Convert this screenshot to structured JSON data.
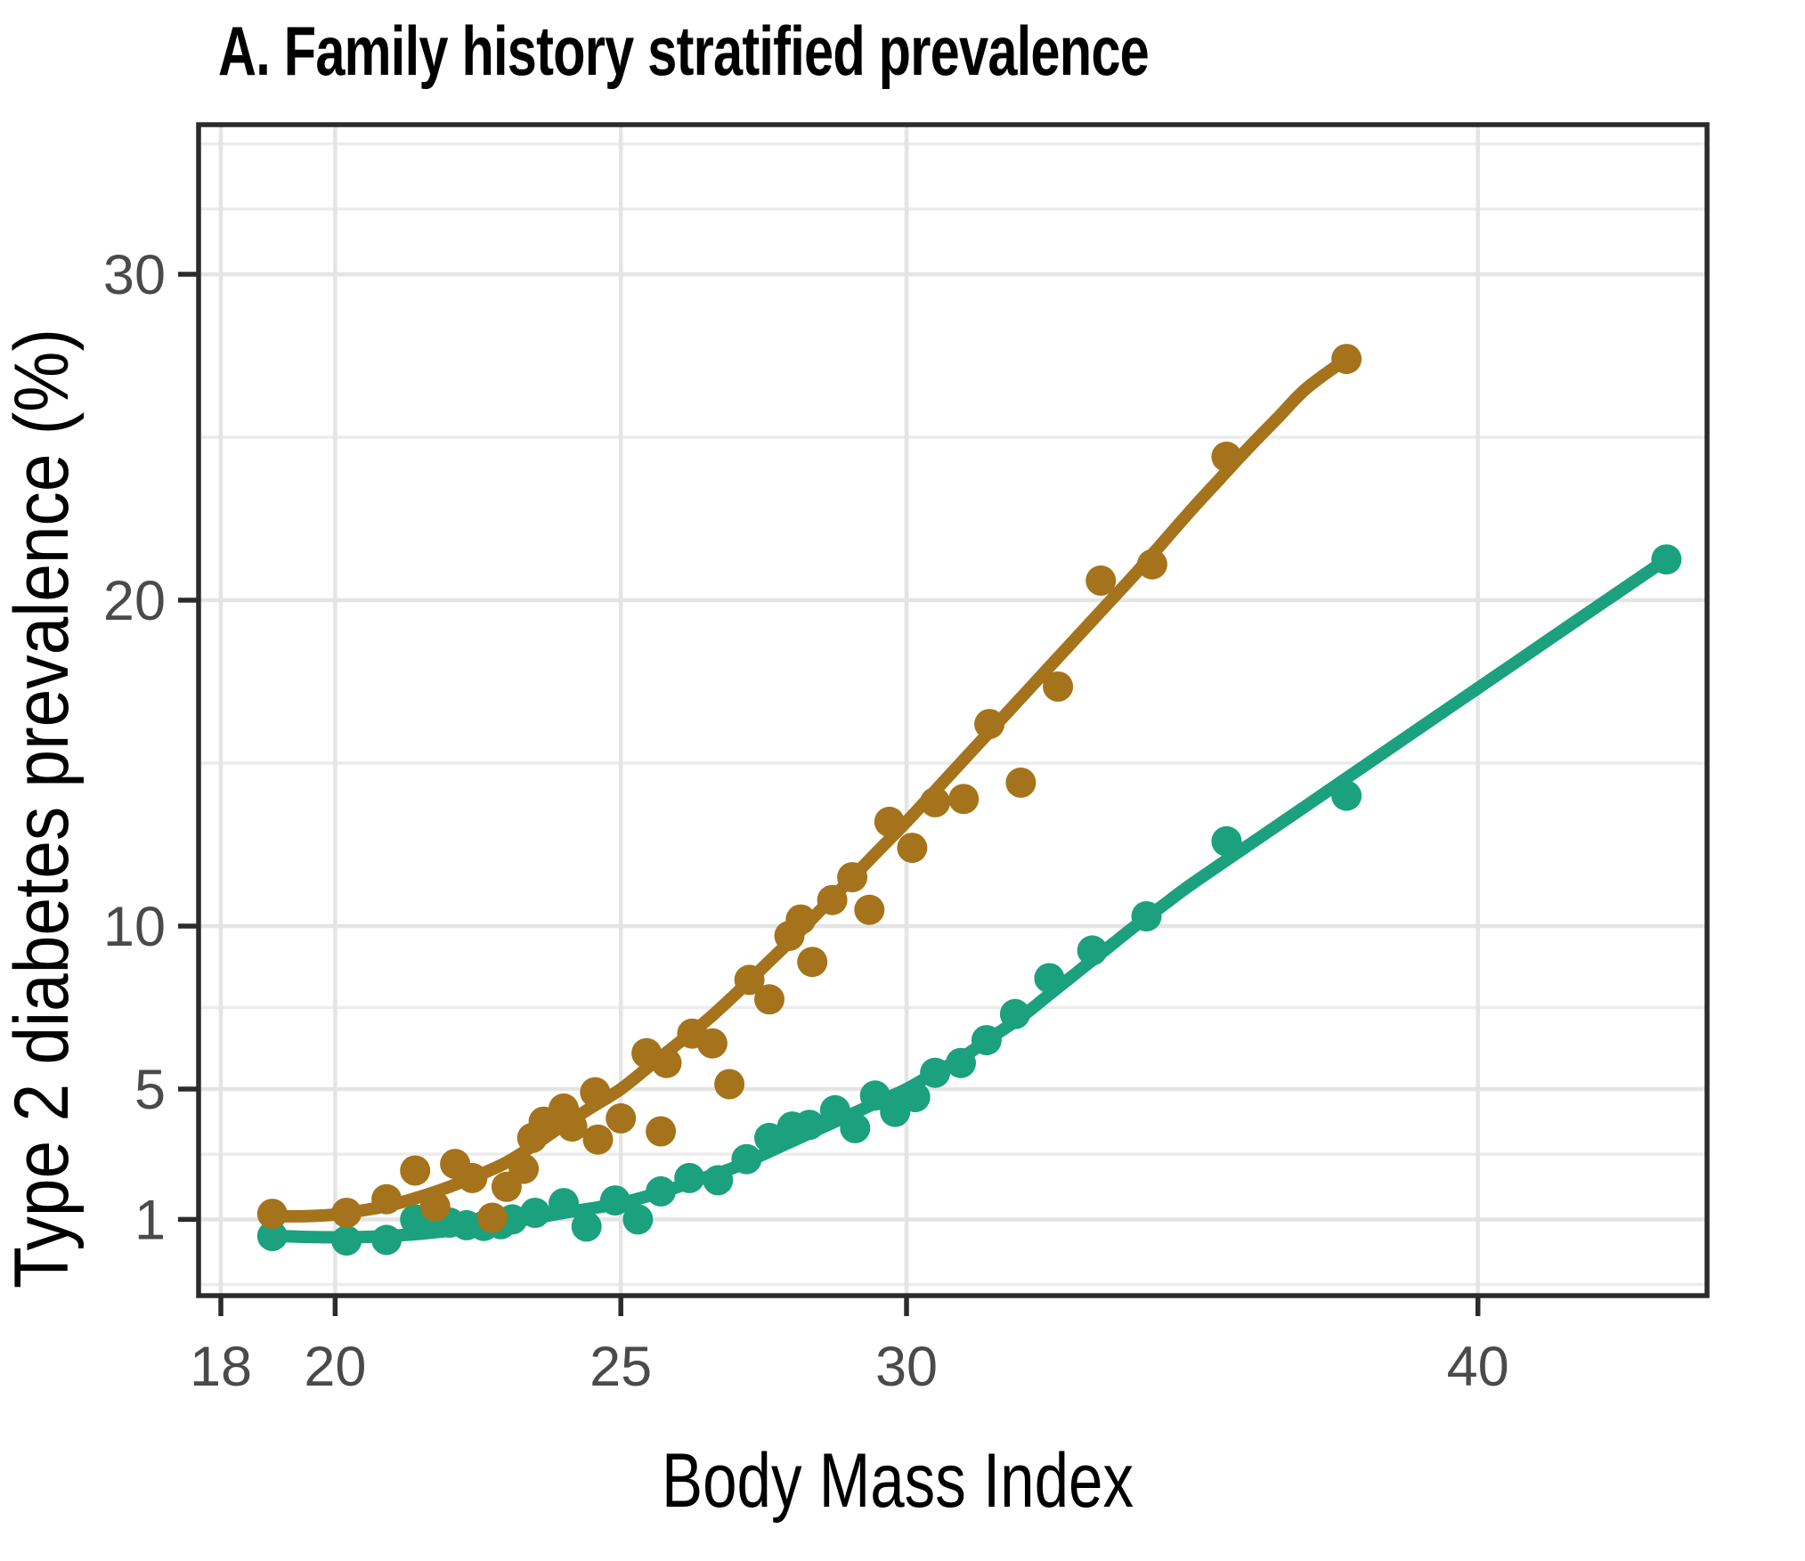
{
  "title": "A. Family history stratified prevalence",
  "chart_data": {
    "type": "scatter",
    "title": "A. Family history stratified prevalence",
    "xlabel": "Body Mass Index",
    "ylabel": "Type 2 diabetes prevalence (%)",
    "grid": true,
    "legend": "none",
    "x_scale": "linear",
    "y_scale": "linear",
    "xlim": [
      17.61,
      44.01
    ],
    "ylim": [
      -1.34,
      34.59
    ],
    "x_major_ticks": [
      18,
      20,
      25,
      30,
      40
    ],
    "y_major_ticks": [
      30,
      20,
      10,
      5,
      1
    ],
    "y_minor_gridlines": [
      -1,
      3,
      7.5,
      15,
      25,
      32,
      34
    ],
    "colors": {
      "brown_series": "#A5731C",
      "green_series": "#1BA17D",
      "major_grid": "#e4e4e4",
      "minor_grid": "#ececec",
      "panel_border": "#2b2b2b",
      "tick_label": "#4a4a4a",
      "text": "#000000"
    },
    "series": [
      {
        "name": "brown-series",
        "color": "#A5731C",
        "points": [
          [
            18.9,
            1.17
          ],
          [
            20.2,
            1.2
          ],
          [
            20.9,
            1.62
          ],
          [
            21.4,
            2.5
          ],
          [
            21.75,
            1.4
          ],
          [
            22.1,
            2.7
          ],
          [
            22.4,
            2.27
          ],
          [
            22.75,
            1.05
          ],
          [
            23.0,
            2.0
          ],
          [
            23.3,
            2.55
          ],
          [
            23.45,
            3.5
          ],
          [
            23.65,
            4.0
          ],
          [
            24.0,
            4.4
          ],
          [
            24.15,
            3.85
          ],
          [
            24.55,
            4.9
          ],
          [
            24.6,
            3.45
          ],
          [
            25.0,
            4.1
          ],
          [
            25.45,
            6.1
          ],
          [
            25.7,
            3.7
          ],
          [
            25.8,
            5.8
          ],
          [
            26.25,
            6.7
          ],
          [
            26.6,
            6.4
          ],
          [
            26.9,
            5.15
          ],
          [
            27.25,
            8.35
          ],
          [
            27.6,
            7.75
          ],
          [
            27.95,
            9.7
          ],
          [
            28.15,
            10.2
          ],
          [
            28.35,
            8.9
          ],
          [
            28.7,
            10.8
          ],
          [
            29.05,
            11.5
          ],
          [
            29.35,
            10.5
          ],
          [
            29.7,
            13.2
          ],
          [
            30.1,
            12.4
          ],
          [
            30.5,
            13.8
          ],
          [
            31.0,
            13.9
          ],
          [
            31.45,
            16.2
          ],
          [
            32.0,
            14.4
          ],
          [
            32.65,
            17.35
          ],
          [
            33.4,
            20.6
          ],
          [
            34.3,
            21.1
          ],
          [
            35.6,
            24.4
          ],
          [
            37.7,
            27.4
          ]
        ],
        "trend": [
          [
            18.85,
            1.1
          ],
          [
            19.5,
            1.1
          ],
          [
            20,
            1.15
          ],
          [
            20.5,
            1.28
          ],
          [
            21,
            1.45
          ],
          [
            21.5,
            1.7
          ],
          [
            22,
            2.0
          ],
          [
            22.5,
            2.35
          ],
          [
            23,
            2.75
          ],
          [
            23.5,
            3.3
          ],
          [
            24,
            3.9
          ],
          [
            24.5,
            4.45
          ],
          [
            25,
            5.0
          ],
          [
            25.5,
            5.7
          ],
          [
            26,
            6.4
          ],
          [
            26.5,
            7.1
          ],
          [
            27,
            7.9
          ],
          [
            27.5,
            8.75
          ],
          [
            28,
            9.6
          ],
          [
            28.5,
            10.5
          ],
          [
            29,
            11.4
          ],
          [
            29.5,
            12.3
          ],
          [
            30,
            13.2
          ],
          [
            30.5,
            14.15
          ],
          [
            31,
            15.1
          ],
          [
            31.5,
            16.05
          ],
          [
            32,
            17.0
          ],
          [
            32.5,
            17.95
          ],
          [
            33,
            18.9
          ],
          [
            33.5,
            19.85
          ],
          [
            34,
            20.8
          ],
          [
            34.5,
            21.8
          ],
          [
            35,
            22.8
          ],
          [
            35.5,
            23.75
          ],
          [
            36,
            24.7
          ],
          [
            36.5,
            25.6
          ],
          [
            37,
            26.5
          ],
          [
            37.7,
            27.4
          ]
        ]
      },
      {
        "name": "green-series",
        "color": "#1BA17D",
        "points": [
          [
            18.9,
            0.49
          ],
          [
            20.2,
            0.35
          ],
          [
            20.9,
            0.37
          ],
          [
            21.4,
            1.0
          ],
          [
            21.7,
            0.9
          ],
          [
            22.0,
            0.9
          ],
          [
            22.3,
            0.82
          ],
          [
            22.6,
            0.8
          ],
          [
            22.9,
            0.85
          ],
          [
            23.1,
            1.0
          ],
          [
            23.5,
            1.2
          ],
          [
            24.0,
            1.5
          ],
          [
            24.4,
            0.78
          ],
          [
            24.9,
            1.58
          ],
          [
            25.3,
            1.0
          ],
          [
            25.7,
            1.86
          ],
          [
            26.2,
            2.27
          ],
          [
            26.7,
            2.2
          ],
          [
            27.2,
            2.85
          ],
          [
            27.6,
            3.5
          ],
          [
            28.0,
            3.85
          ],
          [
            28.3,
            3.9
          ],
          [
            28.75,
            4.35
          ],
          [
            29.1,
            3.8
          ],
          [
            29.45,
            4.8
          ],
          [
            29.8,
            4.3
          ],
          [
            30.15,
            4.75
          ],
          [
            30.5,
            5.5
          ],
          [
            30.95,
            5.8
          ],
          [
            31.4,
            6.5
          ],
          [
            31.9,
            7.3
          ],
          [
            32.5,
            8.4
          ],
          [
            33.25,
            9.25
          ],
          [
            34.2,
            10.3
          ],
          [
            35.6,
            12.6
          ],
          [
            37.7,
            14.0
          ],
          [
            43.3,
            21.25
          ]
        ],
        "trend": [
          [
            18.85,
            0.5
          ],
          [
            19.5,
            0.46
          ],
          [
            20,
            0.45
          ],
          [
            20.5,
            0.46
          ],
          [
            21,
            0.5
          ],
          [
            21.5,
            0.56
          ],
          [
            22,
            0.65
          ],
          [
            22.5,
            0.76
          ],
          [
            23,
            0.9
          ],
          [
            23.5,
            1.04
          ],
          [
            24,
            1.2
          ],
          [
            24.5,
            1.34
          ],
          [
            25,
            1.5
          ],
          [
            25.5,
            1.73
          ],
          [
            26,
            2.0
          ],
          [
            26.5,
            2.3
          ],
          [
            27,
            2.6
          ],
          [
            27.5,
            3.0
          ],
          [
            28,
            3.4
          ],
          [
            28.5,
            3.8
          ],
          [
            29,
            4.2
          ],
          [
            29.5,
            4.6
          ],
          [
            30,
            5.0
          ],
          [
            30.5,
            5.5
          ],
          [
            31,
            6.0
          ],
          [
            31.5,
            6.6
          ],
          [
            32,
            7.2
          ],
          [
            32.5,
            7.9
          ],
          [
            33,
            8.6
          ],
          [
            33.5,
            9.3
          ],
          [
            34,
            10.0
          ],
          [
            34.5,
            10.65
          ],
          [
            35,
            11.3
          ],
          [
            36,
            12.5
          ],
          [
            37,
            13.7
          ],
          [
            38,
            14.9
          ],
          [
            39,
            16.1
          ],
          [
            40,
            17.3
          ],
          [
            41,
            18.5
          ],
          [
            42,
            19.7
          ],
          [
            43.3,
            21.25
          ]
        ]
      }
    ]
  }
}
